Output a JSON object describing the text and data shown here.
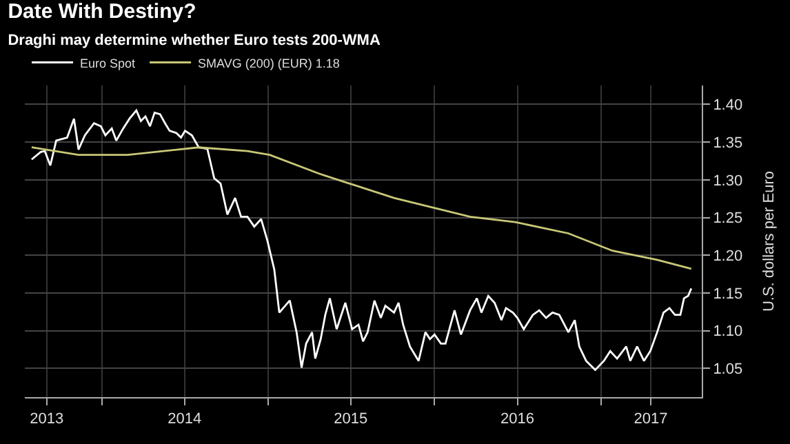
{
  "chart_data": {
    "type": "line",
    "title": "Date With Destiny?",
    "subtitle": "Draghi may determine whether Euro tests 200-WMA",
    "ylabel": "U.S. dollars per Euro",
    "xlim": [
      "2013-07-15",
      "2017-08-10"
    ],
    "xticks": [
      {
        "value": "2013-09-01",
        "label": "2013"
      },
      {
        "value": "2014-01-01",
        "label": null
      },
      {
        "value": "2014-07-01",
        "label": "2014"
      },
      {
        "value": "2015-01-01",
        "label": null
      },
      {
        "value": "2015-07-01",
        "label": "2015"
      },
      {
        "value": "2016-01-01",
        "label": null
      },
      {
        "value": "2016-07-01",
        "label": "2016"
      },
      {
        "value": "2017-01-01",
        "label": null
      },
      {
        "value": "2017-04-20",
        "label": "2017"
      }
    ],
    "ylim": [
      1.012,
      1.425
    ],
    "yticks": [
      {
        "value": 1.05,
        "label": "1.05"
      },
      {
        "value": 1.1,
        "label": "1.10"
      },
      {
        "value": 1.15,
        "label": "1.15"
      },
      {
        "value": 1.2,
        "label": "1.20"
      },
      {
        "value": 1.25,
        "label": "1.25"
      },
      {
        "value": 1.3,
        "label": "1.30"
      },
      {
        "value": 1.35,
        "label": "1.35"
      },
      {
        "value": 1.4,
        "label": "1.40"
      }
    ],
    "grid": true,
    "legend": "top left",
    "marker": "none",
    "line_style": "solid",
    "series": [
      {
        "name": "Euro Spot",
        "color": "#ffffff",
        "x": [
          "2013-07-30",
          "2013-08-19",
          "2013-08-28",
          "2013-09-09",
          "2013-09-22",
          "2013-10-16",
          "2013-10-31",
          "2013-11-10",
          "2013-11-24",
          "2013-12-14",
          "2013-12-29",
          "2014-01-08",
          "2014-01-22",
          "2014-02-01",
          "2014-02-16",
          "2014-03-02",
          "2014-03-17",
          "2014-03-27",
          "2014-04-06",
          "2014-04-16",
          "2014-04-26",
          "2014-05-08",
          "2014-05-19",
          "2014-05-29",
          "2014-06-13",
          "2014-06-23",
          "2014-07-02",
          "2014-07-17",
          "2014-08-01",
          "2014-08-20",
          "2014-09-04",
          "2014-09-18",
          "2014-10-03",
          "2014-10-20",
          "2014-11-02",
          "2014-11-16",
          "2014-12-01",
          "2014-12-16",
          "2014-12-30",
          "2015-01-14",
          "2015-01-25",
          "2015-02-17",
          "2015-03-04",
          "2015-03-15",
          "2015-03-25",
          "2015-04-07",
          "2015-04-14",
          "2015-04-26",
          "2015-05-06",
          "2015-05-16",
          "2015-05-31",
          "2015-06-19",
          "2015-07-04",
          "2015-07-18",
          "2015-07-28",
          "2015-08-07",
          "2015-08-22",
          "2015-09-05",
          "2015-09-15",
          "2015-10-04",
          "2015-10-14",
          "2015-10-24",
          "2015-11-08",
          "2015-11-27",
          "2015-12-12",
          "2015-12-22",
          "2016-01-01",
          "2016-01-15",
          "2016-01-25",
          "2016-02-14",
          "2016-02-28",
          "2016-03-19",
          "2016-04-03",
          "2016-04-13",
          "2016-04-28",
          "2016-05-12",
          "2016-05-27",
          "2016-06-06",
          "2016-06-21",
          "2016-07-01",
          "2016-07-15",
          "2016-08-04",
          "2016-08-18",
          "2016-09-02",
          "2016-09-16",
          "2016-10-01",
          "2016-10-21",
          "2016-11-04",
          "2016-11-14",
          "2016-11-29",
          "2016-12-19",
          "2017-01-07",
          "2017-01-21",
          "2017-02-05",
          "2017-02-25",
          "2017-03-06",
          "2017-03-21",
          "2017-04-05",
          "2017-04-19",
          "2017-05-04",
          "2017-05-18",
          "2017-05-31",
          "2017-06-12",
          "2017-06-24",
          "2017-07-02",
          "2017-07-11",
          "2017-07-18"
        ],
        "values": [
          1.327,
          1.337,
          1.338,
          1.319,
          1.352,
          1.356,
          1.381,
          1.34,
          1.359,
          1.375,
          1.371,
          1.359,
          1.368,
          1.352,
          1.368,
          1.381,
          1.392,
          1.378,
          1.384,
          1.371,
          1.389,
          1.387,
          1.375,
          1.365,
          1.362,
          1.356,
          1.365,
          1.359,
          1.343,
          1.341,
          1.302,
          1.295,
          1.254,
          1.276,
          1.251,
          1.251,
          1.238,
          1.248,
          1.219,
          1.181,
          1.124,
          1.14,
          1.098,
          1.051,
          1.083,
          1.098,
          1.063,
          1.089,
          1.121,
          1.143,
          1.102,
          1.137,
          1.102,
          1.108,
          1.086,
          1.098,
          1.14,
          1.117,
          1.133,
          1.124,
          1.137,
          1.108,
          1.079,
          1.06,
          1.098,
          1.089,
          1.095,
          1.083,
          1.083,
          1.127,
          1.095,
          1.127,
          1.143,
          1.124,
          1.146,
          1.137,
          1.114,
          1.13,
          1.124,
          1.117,
          1.102,
          1.121,
          1.127,
          1.117,
          1.124,
          1.121,
          1.098,
          1.114,
          1.079,
          1.06,
          1.048,
          1.06,
          1.073,
          1.063,
          1.079,
          1.06,
          1.079,
          1.06,
          1.073,
          1.098,
          1.124,
          1.13,
          1.121,
          1.121,
          1.143,
          1.146,
          1.156
        ]
      },
      {
        "name": "SMAVG (200) (EUR) 1.18",
        "color": "#c8c878",
        "x": [
          "2013-07-30",
          "2013-11-10",
          "2014-02-26",
          "2014-08-01",
          "2014-11-16",
          "2015-01-04",
          "2015-04-23",
          "2015-10-04",
          "2016-03-19",
          "2016-06-26",
          "2016-10-21",
          "2017-01-26",
          "2017-05-04",
          "2017-07-18"
        ],
        "values": [
          1.343,
          1.333,
          1.333,
          1.343,
          1.338,
          1.333,
          1.308,
          1.276,
          1.251,
          1.244,
          1.229,
          1.206,
          1.194,
          1.182
        ]
      }
    ]
  }
}
